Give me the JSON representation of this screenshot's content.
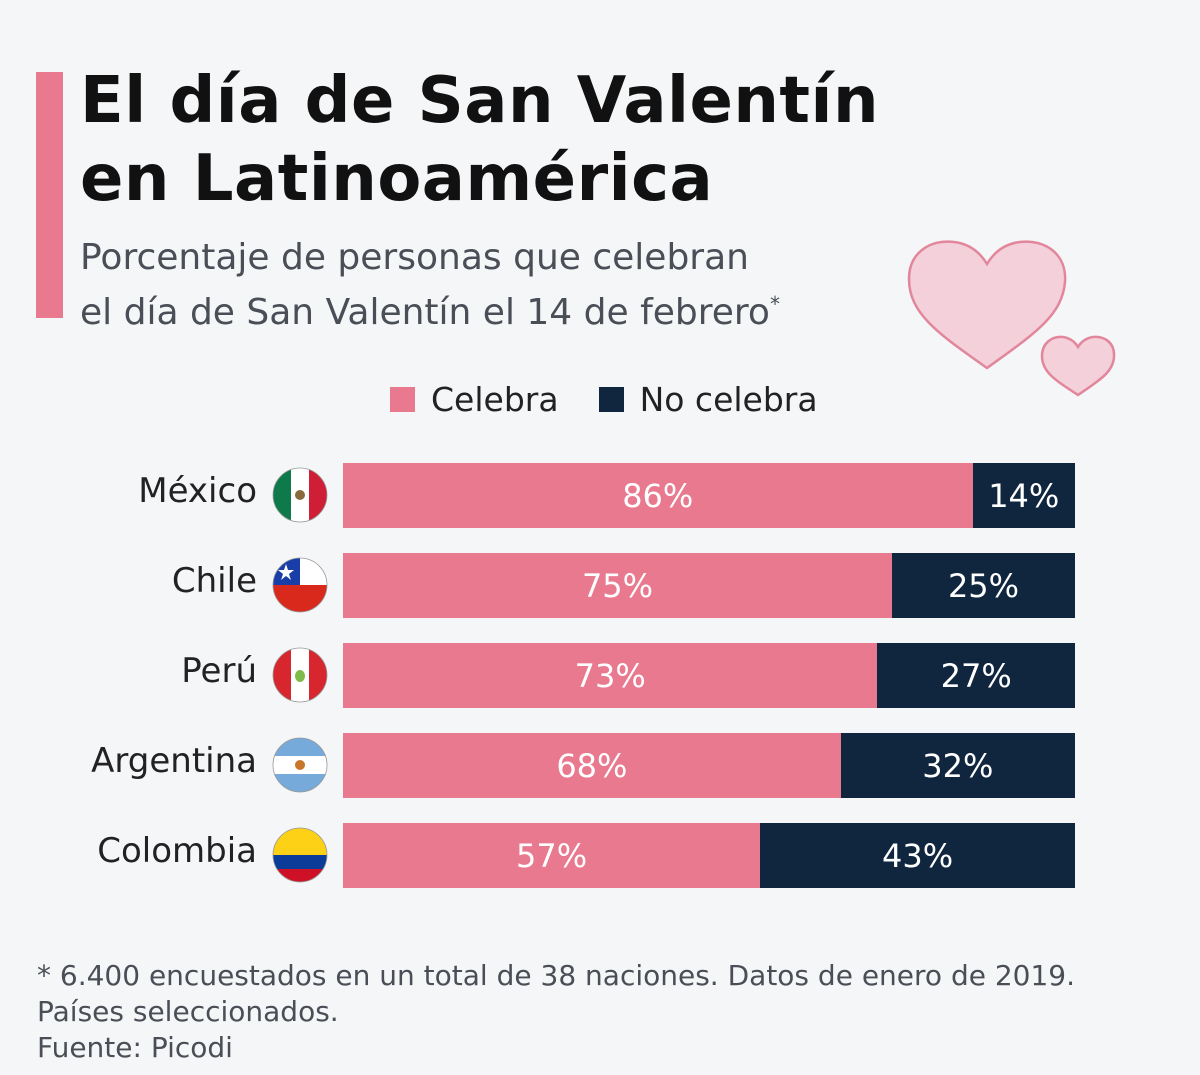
{
  "header": {
    "title_line1": "El día de San Valentín",
    "title_line2": "en Latinoamérica",
    "subtitle_line1": "Porcentaje de personas que celebran",
    "subtitle_line2": "el día de San Valentín el 14 de febrero",
    "subtitle_mark": "*"
  },
  "colors": {
    "celebra": "#e8798f",
    "no_celebra": "#10263f",
    "accent": "#e8798f"
  },
  "chart_data": {
    "type": "bar",
    "orientation": "horizontal",
    "stacked": true,
    "unit": "%",
    "categories": [
      "México",
      "Chile",
      "Perú",
      "Argentina",
      "Colombia"
    ],
    "flag_icons": [
      "mexico-flag-icon",
      "chile-flag-icon",
      "peru-flag-icon",
      "argentina-flag-icon",
      "colombia-flag-icon"
    ],
    "series": [
      {
        "name": "Celebra",
        "values": [
          86,
          75,
          73,
          68,
          57
        ],
        "labels": [
          "86%",
          "75%",
          "73%",
          "68%",
          "57%"
        ]
      },
      {
        "name": "No celebra",
        "values": [
          14,
          25,
          27,
          32,
          43
        ],
        "labels": [
          "14%",
          "25%",
          "27%",
          "32%",
          "43%"
        ]
      }
    ],
    "xlim": [
      0,
      100
    ],
    "legend": "top",
    "grid": false
  },
  "footer": {
    "note_line1": "* 6.400 encuestados en un total de 38 naciones. Datos de enero de 2019.",
    "note_line2": "Países seleccionados.",
    "source": "Fuente: Picodi"
  }
}
